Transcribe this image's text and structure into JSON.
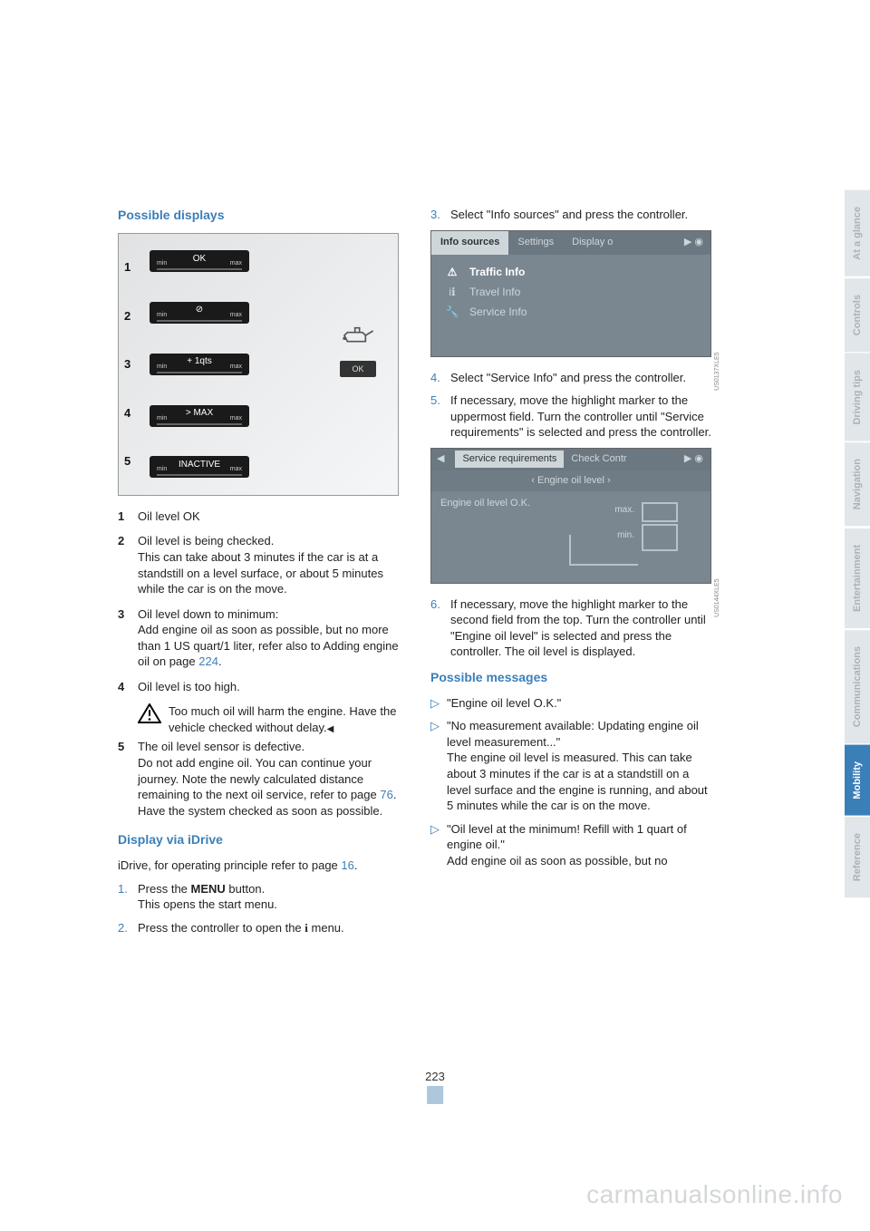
{
  "page_number": "223",
  "watermark": "carmanualsonline.info",
  "side_tabs": [
    {
      "label": "At a glance",
      "active": false
    },
    {
      "label": "Controls",
      "active": false
    },
    {
      "label": "Driving tips",
      "active": false
    },
    {
      "label": "Navigation",
      "active": false
    },
    {
      "label": "Entertainment",
      "active": false
    },
    {
      "label": "Communications",
      "active": false
    },
    {
      "label": "Mobility",
      "active": true
    },
    {
      "label": "Reference",
      "active": false
    }
  ],
  "colors": {
    "accent": "#3b7fb8",
    "tab_inactive_bg": "#e1e6ea",
    "tab_inactive_fg": "#a9b2bb"
  },
  "left": {
    "h_possible": "Possible displays",
    "gauges": [
      "OK",
      "⊘",
      "+ 1qts",
      "> MAX",
      "INACTIVE"
    ],
    "gauge_scale": {
      "min": "min",
      "max": "max"
    },
    "oil_ok": "OK",
    "defs": [
      {
        "n": "1",
        "text": "Oil level OK"
      },
      {
        "n": "2",
        "text": "Oil level is being checked.\nThis can take about 3 minutes if the car is at a standstill on a level surface, or about 5 minutes while the car is on the move."
      },
      {
        "n": "3",
        "text": "Oil level down to minimum:\nAdd engine oil as soon as possible, but no more than 1 US quart/1 liter, refer also to Adding engine oil on page ",
        "link": "224",
        "tail": "."
      },
      {
        "n": "4",
        "text": "Oil level is too high."
      },
      {
        "n": "5",
        "text": "The oil level sensor is defective.\nDo not add engine oil. You can continue your journey. Note the newly calculated distance remaining to the next oil service, refer to page ",
        "link": "76",
        "tail": ". Have the system checked as soon as possible."
      }
    ],
    "warn": "Too much oil will harm the engine. Have the vehicle checked without delay.",
    "h_idrive": "Display via iDrive",
    "idrive_lead_pre": "iDrive, for operating principle refer to page ",
    "idrive_lead_link": "16",
    "idrive_lead_post": ".",
    "steps": [
      {
        "n": "1.",
        "pre": "Press the ",
        "bold": "MENU",
        "post": " button.\nThis opens the start menu."
      },
      {
        "n": "2.",
        "pre": "Press the controller to open the ",
        "icon": "i",
        "post": " menu."
      }
    ]
  },
  "right": {
    "steps1": [
      {
        "n": "3.",
        "text": "Select \"Info sources\" and press the controller."
      }
    ],
    "screen1": {
      "tabs": [
        "Info sources",
        "Settings",
        "Display o"
      ],
      "items": [
        {
          "icon": "⚠",
          "label": "Traffic Info",
          "active": true
        },
        {
          "icon": "iℹ",
          "label": "Travel Info",
          "active": false
        },
        {
          "icon": "🔧",
          "label": "Service Info",
          "active": false
        }
      ]
    },
    "steps2": [
      {
        "n": "4.",
        "text": "Select \"Service Info\" and press the controller."
      },
      {
        "n": "5.",
        "text": "If necessary, move the highlight marker to the uppermost field. Turn the controller until \"Service requirements\" is selected and press the controller."
      }
    ],
    "screen2": {
      "title": "Service requirements",
      "title2": "Check Contr",
      "sub": "‹ Engine oil level ›",
      "status": "Engine oil level O.K.",
      "max": "max.",
      "min": "min."
    },
    "steps3": [
      {
        "n": "6.",
        "text": "If necessary, move the highlight marker to the second field from the top. Turn the controller until \"Engine oil level\" is selected and press the controller. The oil level is displayed."
      }
    ],
    "h_msgs": "Possible messages",
    "msgs": [
      {
        "text": "\"Engine oil level O.K.\""
      },
      {
        "text": "\"No measurement available: Updating engine oil level measurement...\"\nThe engine oil level is measured. This can take about 3 minutes if the car is at a standstill on a level surface and the engine is running, and about 5 minutes while the car is on the move."
      },
      {
        "text": "\"Oil level at the minimum! Refill with 1 quart of engine oil.\"\nAdd engine oil as soon as possible, but no"
      }
    ]
  }
}
